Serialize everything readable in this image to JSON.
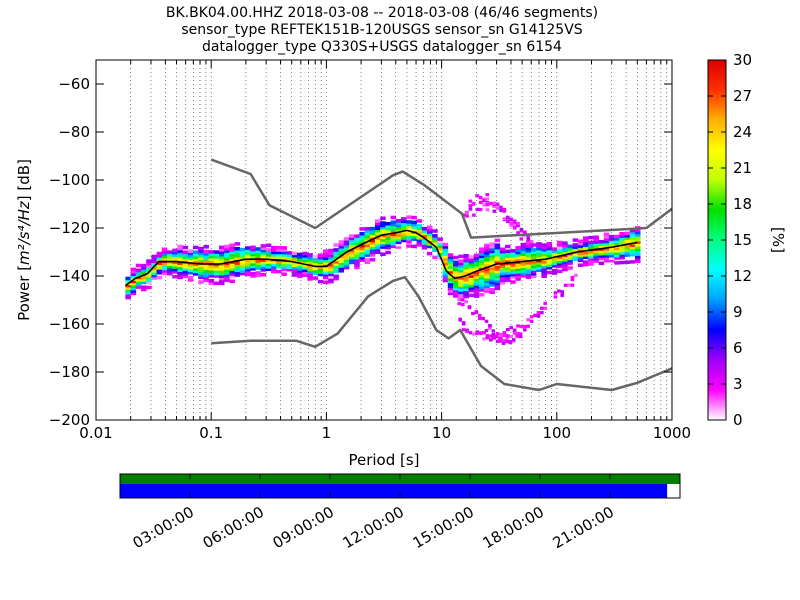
{
  "chart_data": {
    "type": "heatmap",
    "title_lines": [
      "BK.BK04.00.HHZ   2018-03-08 -- 2018-03-08  (46/46 segments)",
      "sensor_type REFTEK151B-120USGS sensor_sn G14125VS",
      "datalogger_type Q330S+USGS datalogger_sn 6154"
    ],
    "xlabel": "Period [s]",
    "ylabel_prefix": "Power [",
    "ylabel_units": "m²/s⁴/Hz",
    "ylabel_suffix": "] [dB]",
    "x_scale": "log",
    "xlim": [
      0.01,
      1000
    ],
    "ylim": [
      -200,
      -50
    ],
    "x_ticks": [
      {
        "value": 0.01,
        "label": "0.01"
      },
      {
        "value": 0.1,
        "label": "0.1"
      },
      {
        "value": 1,
        "label": "1"
      },
      {
        "value": 10,
        "label": "10"
      },
      {
        "value": 100,
        "label": "100"
      },
      {
        "value": 1000,
        "label": "1000"
      }
    ],
    "y_ticks": [
      {
        "value": -60,
        "label": "−60"
      },
      {
        "value": -80,
        "label": "−80"
      },
      {
        "value": -100,
        "label": "−100"
      },
      {
        "value": -120,
        "label": "−120"
      },
      {
        "value": -140,
        "label": "−140"
      },
      {
        "value": -160,
        "label": "−160"
      },
      {
        "value": -180,
        "label": "−180"
      },
      {
        "value": -200,
        "label": "−200"
      }
    ],
    "grid": "dotted vertical at log sub-decades",
    "colorbar": {
      "label": "[%]",
      "range": [
        0,
        30
      ],
      "ticks": [
        {
          "value": 0,
          "label": "0"
        },
        {
          "value": 3,
          "label": "3"
        },
        {
          "value": 6,
          "label": "6"
        },
        {
          "value": 9,
          "label": "9"
        },
        {
          "value": 12,
          "label": "12"
        },
        {
          "value": 15,
          "label": "15"
        },
        {
          "value": 18,
          "label": "18"
        },
        {
          "value": 21,
          "label": "21"
        },
        {
          "value": 24,
          "label": "24"
        },
        {
          "value": 27,
          "label": "27"
        },
        {
          "value": 30,
          "label": "30"
        }
      ],
      "colors": [
        "#ffffff",
        "#ff00ff",
        "#a000ff",
        "#0000ff",
        "#00a0ff",
        "#00ffff",
        "#00ff80",
        "#00e000",
        "#c0ff00",
        "#ffff00",
        "#ffb000",
        "#ff3000",
        "#dd0000"
      ]
    },
    "high_noise_model": {
      "period": [
        0.1,
        0.22,
        0.32,
        0.8,
        3.8,
        4.6,
        7,
        15,
        18,
        600,
        1000
      ],
      "power": [
        -91.5,
        -97.5,
        -110.5,
        -120,
        -98,
        -96.5,
        -102,
        -114,
        -124,
        -120,
        -112
      ]
    },
    "low_noise_model": {
      "period": [
        0.1,
        0.22,
        0.55,
        0.8,
        1.25,
        2.3,
        3.8,
        4.8,
        6.3,
        9,
        11.5,
        14.5,
        22,
        35,
        70,
        100,
        300,
        500,
        1000
      ],
      "power": [
        -168,
        -167,
        -167,
        -169.5,
        -164,
        -148.5,
        -142,
        -140.5,
        -148.5,
        -162.5,
        -166,
        -162.5,
        -177.5,
        -185,
        -187.5,
        -185,
        -187.5,
        -184.5,
        -178.5
      ]
    },
    "mode_curve": {
      "period": [
        0.018,
        0.022,
        0.028,
        0.035,
        0.05,
        0.08,
        0.12,
        0.2,
        0.3,
        0.5,
        0.8,
        1.0,
        1.5,
        2.2,
        3.0,
        4.0,
        5.0,
        6.0,
        7.0,
        9.0,
        11.0,
        13.0,
        16.0,
        20.0,
        30.0,
        50.0,
        80.0,
        150.0,
        300.0,
        500.0
      ],
      "power": [
        -144,
        -141,
        -139,
        -134,
        -134,
        -135,
        -135,
        -133,
        -133,
        -134,
        -136,
        -136,
        -130,
        -126,
        -123,
        -122,
        -121,
        -122,
        -124,
        -128,
        -138,
        -141,
        -140,
        -138,
        -135,
        -134,
        -133,
        -130,
        -128,
        -126
      ]
    },
    "psd_distribution": {
      "body_half_width_db": 3.5,
      "secondary_tracks": [
        {
          "period": [
            14,
            20,
            30,
            50,
            80,
            150
          ],
          "power": [
            -160,
            -164,
            -166,
            -161,
            -152,
            -140
          ]
        },
        {
          "period": [
            12,
            18,
            25,
            35,
            50
          ],
          "power": [
            -148,
            -155,
            -162,
            -168,
            -165
          ]
        },
        {
          "period": [
            16,
            20,
            25,
            32,
            40,
            50,
            60
          ],
          "power": [
            -112,
            -106,
            -108,
            -112,
            -118,
            -124,
            -128
          ]
        },
        {
          "period": [
            15,
            22,
            30,
            40,
            55
          ],
          "power": [
            -116,
            -110,
            -112,
            -118,
            -124
          ]
        }
      ]
    },
    "timeline": {
      "tick_labels": [
        "03:00:00",
        "06:00:00",
        "09:00:00",
        "12:00:00",
        "15:00:00",
        "18:00:00",
        "21:00:00"
      ],
      "tick_hours": [
        3,
        6,
        9,
        12,
        15,
        18,
        21
      ],
      "span_hours": 24,
      "data_coverage_fraction": 1.0,
      "psd_coverage_fraction": 0.977,
      "data_color": "#008000",
      "psd_color": "#0000ff"
    }
  }
}
